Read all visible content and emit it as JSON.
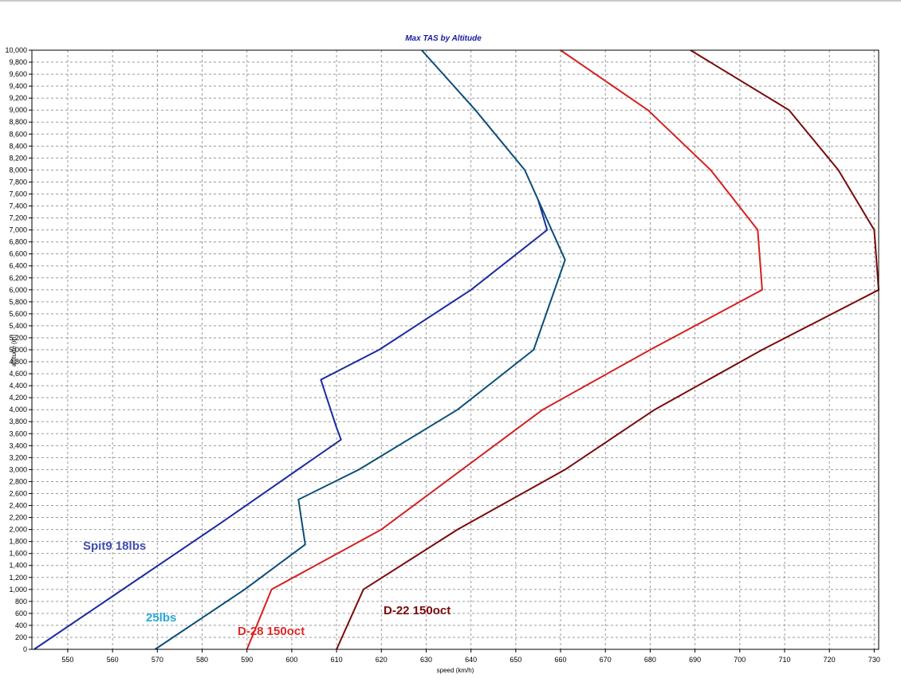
{
  "chart_data": {
    "type": "line",
    "title": "Max TAS by Altitude",
    "xlabel": "speed (km/h)",
    "ylabel": "altitude (m)",
    "xlim": [
      542,
      731
    ],
    "ylim": [
      0,
      10000
    ],
    "x_ticks": [
      "550",
      "560",
      "570",
      "580",
      "590",
      "600",
      "610",
      "620",
      "630",
      "640",
      "650",
      "660",
      "670",
      "680",
      "690",
      "700",
      "710",
      "720",
      "730"
    ],
    "y_ticks": [
      "0",
      "200",
      "400",
      "600",
      "800",
      "1,000",
      "1,200",
      "1,400",
      "1,600",
      "1,800",
      "2,000",
      "2,200",
      "2,400",
      "2,600",
      "2,800",
      "3,000",
      "3,200",
      "3,400",
      "3,600",
      "3,800",
      "4,000",
      "4,200",
      "4,400",
      "4,600",
      "4,800",
      "5,000",
      "5,200",
      "5,400",
      "5,600",
      "5,800",
      "6,000",
      "6,200",
      "6,400",
      "6,600",
      "6,800",
      "7,000",
      "7,200",
      "7,400",
      "7,600",
      "7,800",
      "8,000",
      "8,200",
      "8,400",
      "8,600",
      "8,800",
      "9,000",
      "9,200",
      "9,400",
      "9,600",
      "9,800",
      "10,000"
    ],
    "grid": true,
    "series": [
      {
        "color": "#1b2aa0",
        "points": [
          [
            542.5,
            0
          ],
          [
            584,
            2100
          ],
          [
            611,
            3500
          ],
          [
            610,
            3700
          ],
          [
            606.5,
            4500
          ],
          [
            619.5,
            5000
          ],
          [
            640,
            6000
          ],
          [
            657,
            7000
          ],
          [
            655,
            7500
          ]
        ]
      },
      {
        "color": "#0a4e78",
        "points": [
          [
            569.5,
            0
          ],
          [
            589.5,
            1000
          ],
          [
            603,
            1750
          ],
          [
            601.5,
            2500
          ],
          [
            615,
            3000
          ],
          [
            637,
            4000
          ],
          [
            645.5,
            4500
          ],
          [
            654,
            5000
          ],
          [
            661,
            6500
          ],
          [
            652,
            8000
          ],
          [
            641,
            9000
          ],
          [
            629,
            10000
          ]
        ]
      },
      {
        "color": "#d42020",
        "points": [
          [
            590,
            0
          ],
          [
            595.5,
            1000
          ],
          [
            620,
            2000
          ],
          [
            638,
            3000
          ],
          [
            656,
            4000
          ],
          [
            680,
            5000
          ],
          [
            705,
            6000
          ],
          [
            704,
            7000
          ],
          [
            693.5,
            8000
          ],
          [
            679.5,
            9000
          ],
          [
            660,
            10000
          ]
        ]
      },
      {
        "color": "#7a0a0a",
        "points": [
          [
            610,
            0
          ],
          [
            616,
            1000
          ],
          [
            637,
            2000
          ],
          [
            661,
            3000
          ],
          [
            681,
            4000
          ],
          [
            705,
            5000
          ],
          [
            731,
            6000
          ],
          [
            730,
            7000
          ],
          [
            722,
            8000
          ],
          [
            711,
            9000
          ],
          [
            689,
            10000
          ]
        ]
      }
    ],
    "annotations": [
      {
        "text": "Spit9 18lbs",
        "color": "#3e4cb0"
      },
      {
        "text": "25lbs",
        "color": "#27a9d6"
      },
      {
        "text": "D-28 150oct",
        "color": "#e02828"
      },
      {
        "text": "D-22 150oct",
        "color": "#7a0a0a"
      }
    ]
  }
}
